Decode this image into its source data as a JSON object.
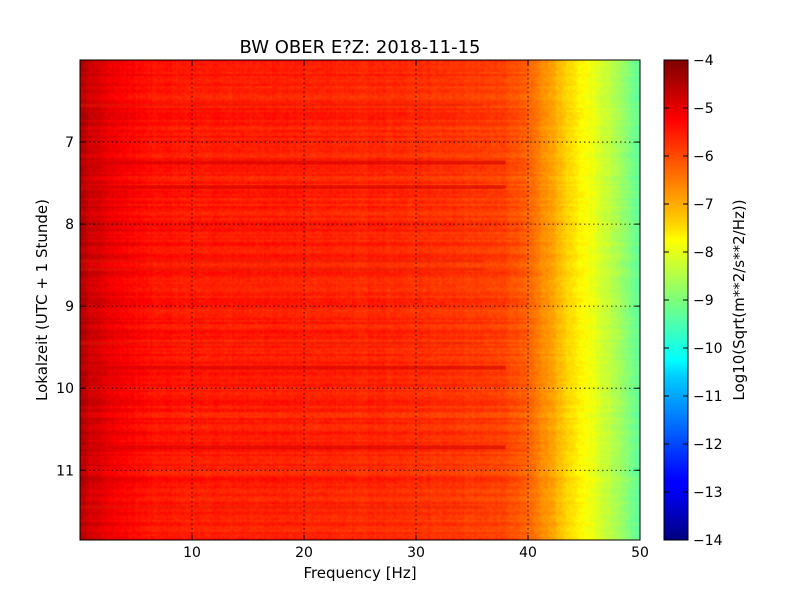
{
  "chart_data": {
    "type": "heatmap",
    "title": "BW OBER E?Z: 2018-11-15",
    "xlabel": "Frequency [Hz]",
    "ylabel": "Lokalzeit (UTC + 1 Stunde)",
    "xlim": [
      0,
      50
    ],
    "ylim": [
      6.0,
      11.85
    ],
    "y_inverted": true,
    "x_ticks": [
      10,
      20,
      30,
      40,
      50
    ],
    "x_tick_labels": [
      "10",
      "20",
      "30",
      "40",
      "50"
    ],
    "y_ticks": [
      7,
      8,
      9,
      10,
      11
    ],
    "y_tick_labels": [
      "7",
      "8",
      "9",
      "10",
      "11"
    ],
    "grid": true,
    "colormap": "jet",
    "colorbar": {
      "label": "Log10(Sqrt(m**2/s**2/Hz))",
      "vmin": -14,
      "vmax": -4,
      "ticks": [
        -4,
        -5,
        -6,
        -7,
        -8,
        -9,
        -10,
        -11,
        -12,
        -13,
        -14
      ],
      "tick_labels": [
        "−4",
        "−5",
        "−6",
        "−7",
        "−8",
        "−9",
        "−10",
        "−11",
        "−12",
        "−13",
        "−14"
      ]
    },
    "spectrum_profile": {
      "frequency_hz": [
        0,
        1,
        3,
        6,
        10,
        20,
        30,
        38,
        40,
        42,
        44,
        46,
        48,
        50
      ],
      "log_amplitude": [
        -4.5,
        -4.8,
        -5.1,
        -5.4,
        -5.5,
        -5.55,
        -5.65,
        -5.9,
        -6.2,
        -6.8,
        -7.5,
        -8.0,
        -8.6,
        -9.3
      ]
    },
    "strong_rows_hour": [
      7.25,
      7.55,
      9.75,
      10.72
    ],
    "weak_rows_hour": [
      6.55,
      8.45,
      8.55,
      9.45,
      11.45
    ]
  }
}
